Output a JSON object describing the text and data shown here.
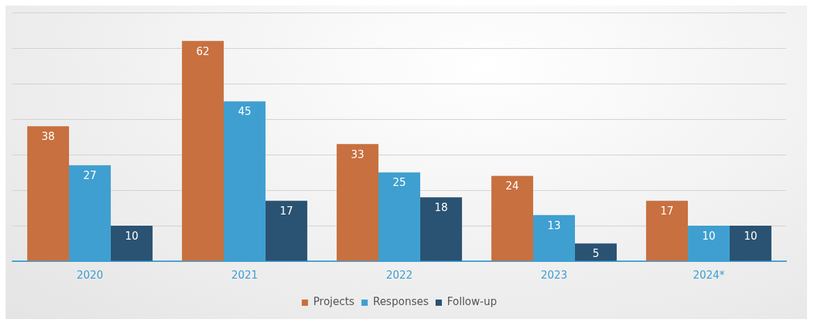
{
  "chart_data": {
    "type": "bar",
    "categories": [
      "2020",
      "2021",
      "2022",
      "2023",
      "2024*"
    ],
    "series": [
      {
        "name": "Projects",
        "color": "#c8703f",
        "values": [
          38,
          62,
          33,
          24,
          17
        ]
      },
      {
        "name": "Responses",
        "color": "#3f9fd0",
        "values": [
          27,
          45,
          25,
          13,
          10
        ]
      },
      {
        "name": "Follow-up",
        "color": "#2a5272",
        "values": [
          10,
          17,
          18,
          5,
          10
        ]
      }
    ],
    "ylim": [
      0,
      70
    ],
    "yticks": [
      {
        "value": 0,
        "label": null
      },
      {
        "value": 10,
        "label": null
      },
      {
        "value": 20,
        "label": null
      },
      {
        "value": 30,
        "label": null
      },
      {
        "value": 40,
        "label": null
      },
      {
        "value": 50,
        "label": null
      },
      {
        "value": 60,
        "label": null
      },
      {
        "value": 70,
        "label": null
      }
    ],
    "tick_labels": "x",
    "grid": "y",
    "data_labels": true,
    "legend": "bottom"
  }
}
